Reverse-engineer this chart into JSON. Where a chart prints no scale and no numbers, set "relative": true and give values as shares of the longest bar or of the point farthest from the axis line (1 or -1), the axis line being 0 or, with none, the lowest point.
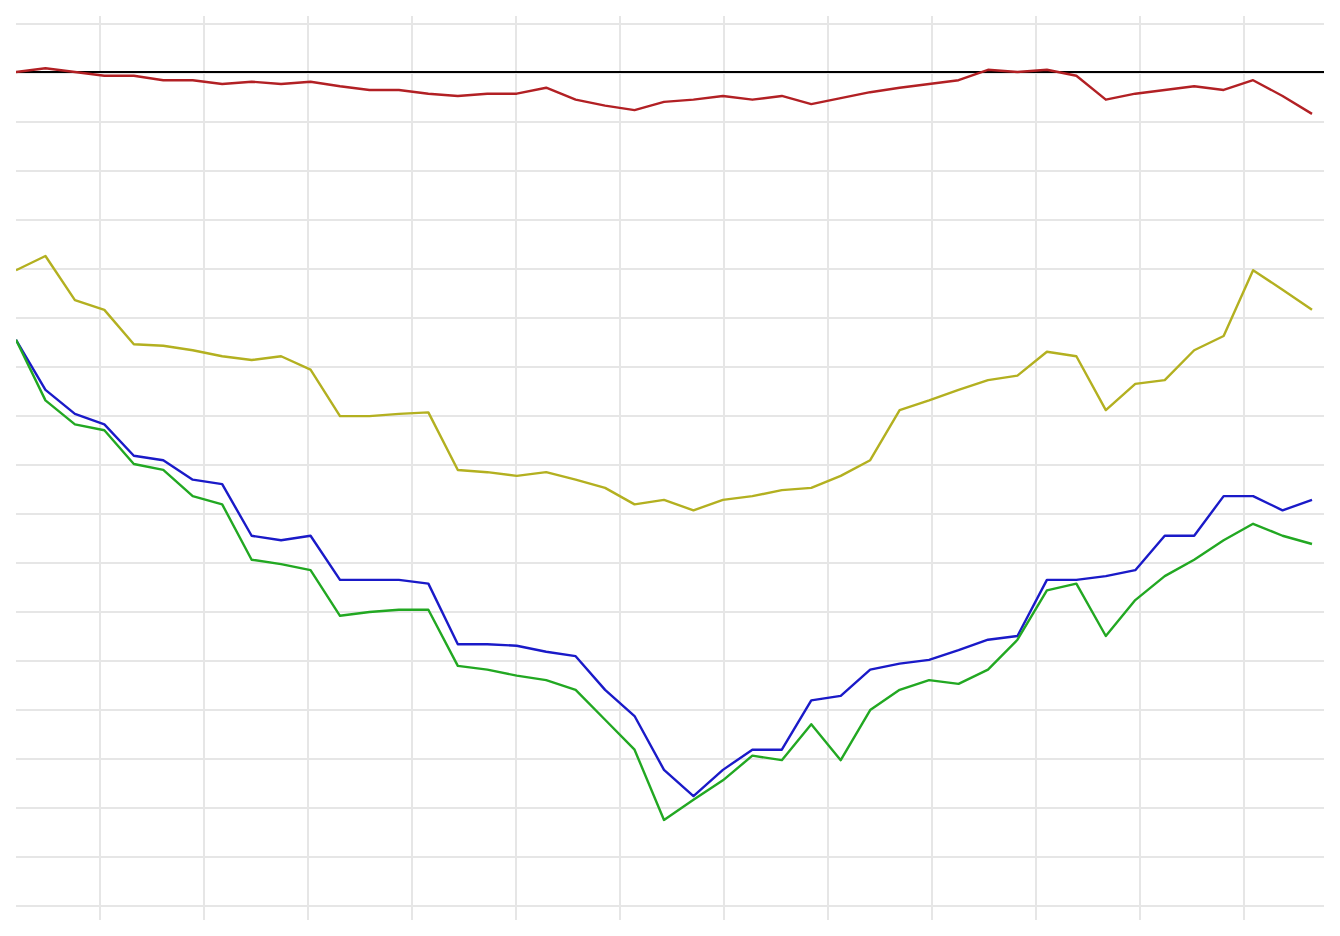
{
  "chart_data": {
    "type": "line",
    "relative": true,
    "grid": true,
    "categories": [
      null,
      null,
      null,
      null,
      null,
      null,
      null,
      null,
      null,
      null,
      null,
      null,
      null,
      null,
      null,
      null,
      null,
      null,
      null,
      null,
      null,
      null,
      null,
      null,
      null,
      null,
      null,
      null,
      null,
      null,
      null,
      null,
      null,
      null,
      null,
      null,
      null,
      null,
      null,
      null,
      null,
      null,
      null,
      null,
      null
    ],
    "series": [
      {
        "color": "#b22024",
        "values": [
          0,
          0.005,
          0,
          -0.005,
          -0.005,
          -0.011,
          -0.011,
          -0.016,
          -0.013,
          -0.016,
          -0.013,
          -0.019,
          -0.024,
          -0.024,
          -0.029,
          -0.032,
          -0.029,
          -0.029,
          -0.021,
          -0.037,
          -0.045,
          -0.051,
          -0.04,
          -0.037,
          -0.032,
          -0.037,
          -0.032,
          -0.043,
          -0.035,
          -0.027,
          -0.021,
          -0.016,
          -0.011,
          0.003,
          0,
          0.003,
          -0.005,
          -0.037,
          -0.029,
          -0.024,
          -0.019,
          -0.024,
          -0.011,
          -0.032,
          -0.056
        ]
      },
      {
        "color": "#b3b020",
        "values": [
          -0.265,
          -0.246,
          -0.305,
          -0.318,
          -0.364,
          -0.366,
          -0.372,
          -0.38,
          -0.385,
          -0.38,
          -0.398,
          -0.46,
          -0.46,
          -0.457,
          -0.455,
          -0.532,
          -0.535,
          -0.54,
          -0.535,
          -0.545,
          -0.556,
          -0.578,
          -0.572,
          -0.586,
          -0.572,
          -0.567,
          -0.559,
          -0.556,
          -0.54,
          -0.519,
          -0.452,
          -0.439,
          -0.425,
          -0.412,
          -0.406,
          -0.374,
          -0.38,
          -0.452,
          -0.417,
          -0.412,
          -0.372,
          -0.353,
          -0.265,
          -0.291,
          -0.318
        ]
      },
      {
        "color": "#1a1ac8",
        "values": [
          -0.358,
          -0.425,
          -0.457,
          -0.471,
          -0.513,
          -0.519,
          -0.545,
          -0.551,
          -0.62,
          -0.626,
          -0.62,
          -0.679,
          -0.679,
          -0.679,
          -0.684,
          -0.765,
          -0.765,
          -0.767,
          -0.775,
          -0.781,
          -0.826,
          -0.861,
          -0.933,
          -0.968,
          -0.933,
          -0.906,
          -0.906,
          -0.84,
          -0.834,
          -0.799,
          -0.791,
          -0.786,
          -0.773,
          -0.759,
          -0.754,
          -0.679,
          -0.679,
          -0.674,
          -0.666,
          -0.62,
          -0.62,
          -0.567,
          -0.567,
          -0.586,
          -0.572
        ]
      },
      {
        "color": "#22a822",
        "values": [
          -0.358,
          -0.439,
          -0.471,
          -0.479,
          -0.524,
          -0.532,
          -0.567,
          -0.578,
          -0.652,
          -0.658,
          -0.666,
          -0.727,
          -0.722,
          -0.719,
          -0.719,
          -0.794,
          -0.799,
          -0.807,
          -0.813,
          -0.826,
          -0.866,
          -0.906,
          -1,
          -0.973,
          -0.947,
          -0.914,
          -0.92,
          -0.872,
          -0.92,
          -0.853,
          -0.826,
          -0.813,
          -0.818,
          -0.799,
          -0.759,
          -0.693,
          -0.684,
          -0.754,
          -0.706,
          -0.674,
          -0.652,
          -0.626,
          -0.604,
          -0.62,
          -0.631
        ]
      }
    ]
  }
}
